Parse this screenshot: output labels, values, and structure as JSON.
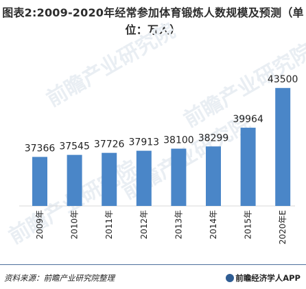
{
  "title": "图表2:2009-2020年经常参加体育锻炼人数规模及预测（单位：万人）",
  "watermark": "前瞻产业研究院",
  "source": "资料来源：前瞻产业研究院整理",
  "brand": "前瞻经济学人APP",
  "colors": {
    "bar": "#4a86c8",
    "axis": "#d8d8d8",
    "title": "#2d2d2d"
  },
  "chart_data": {
    "type": "bar",
    "categories": [
      "2009年",
      "2010年",
      "2011年",
      "2012年",
      "2013年",
      "2014年",
      "2015年",
      "2020年E"
    ],
    "values": [
      37366,
      37545,
      37726,
      37913,
      38100,
      38299,
      39964,
      43500
    ],
    "title": "图表2:2009-2020年经常参加体育锻炼人数规模及预测（单位：万人）",
    "xlabel": "",
    "ylabel": "",
    "ylim": [
      33000,
      44000
    ],
    "grid": false,
    "legend": "none"
  }
}
